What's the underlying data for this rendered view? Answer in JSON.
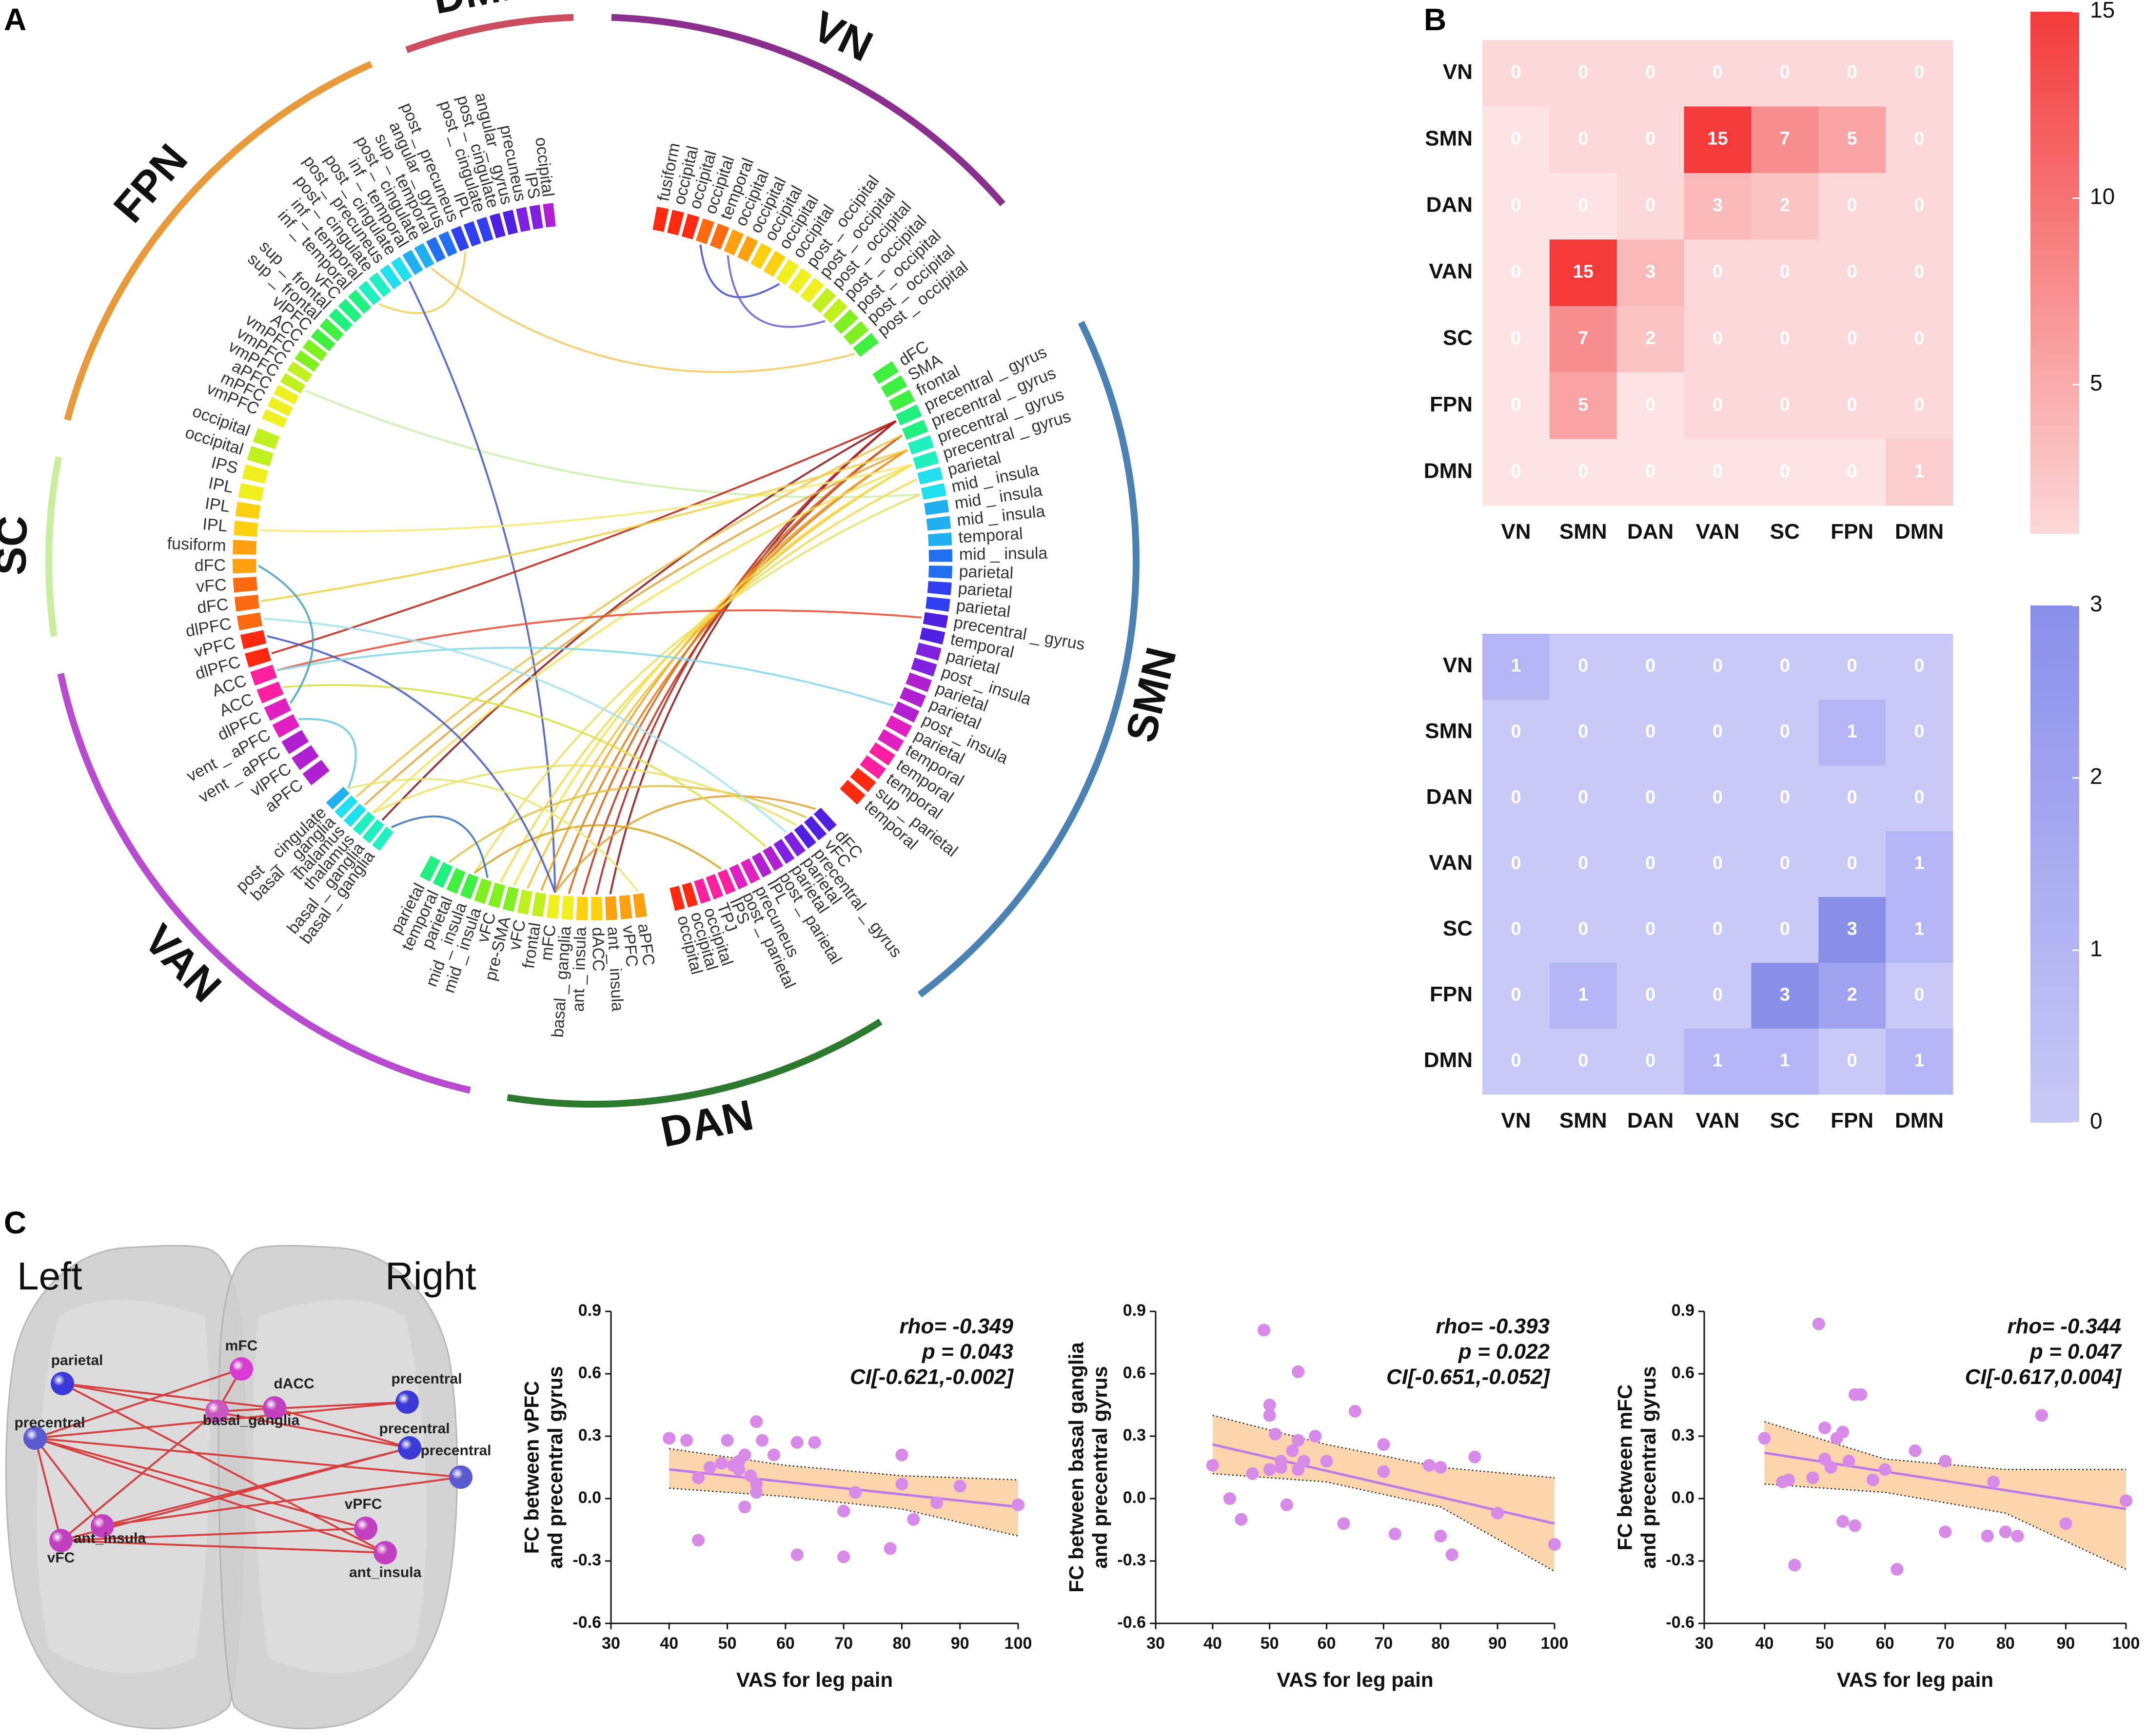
{
  "panels": {
    "a": "A",
    "b": "B",
    "c": "C"
  },
  "chord": {
    "networks": [
      {
        "name": "VN",
        "color": "#8b2f8f"
      },
      {
        "name": "SMN",
        "color": "#4a82b3"
      },
      {
        "name": "DAN",
        "color": "#2c7a2e"
      },
      {
        "name": "VAN",
        "color": "#b84ad0"
      },
      {
        "name": "SC",
        "color": "#c9ef9e"
      },
      {
        "name": "FPN",
        "color": "#e89a3a"
      },
      {
        "name": "DMN",
        "color": "#cc4d5e"
      }
    ],
    "groups": [
      {
        "network": "VN",
        "labels": [
          "fusiform",
          "occipital",
          "occipital",
          "occipital",
          "temporal",
          "occipital",
          "occipital",
          "occipital",
          "occipital",
          "occipital",
          "post _ occipital",
          "post _ occipital",
          "post _ occipital",
          "post _ occipital",
          "post _ occipital",
          "post _ occipital",
          "post _ occipital"
        ]
      },
      {
        "network": "SMN",
        "labels": [
          "dFC",
          "SMA",
          "frontal",
          "precentral _ gyrus",
          "precentral _ gyrus",
          "precentral _ gyrus",
          "precentral _ gyrus",
          "parietal",
          "mid _ insula",
          "mid _ insula",
          "mid _ insula",
          "temporal",
          "mid _ insula",
          "parietal",
          "parietal",
          "parietal",
          "precentral _ gyrus",
          "temporal",
          "parietal",
          "post _ insula",
          "parietal",
          "parietal",
          "post _ insula",
          "parietal",
          "temporal",
          "temporal",
          "temporal",
          "sup _ parietal",
          "temporal"
        ]
      },
      {
        "network": "DAN",
        "labels": [
          "dFC",
          "vFC",
          "precentral _ gyrus",
          "parietal",
          "parietal",
          "post _ parietal",
          "IPL",
          "precuneus",
          "post _ parietal",
          "IPS",
          "TPJ",
          "occipital",
          "occipital",
          "occipital"
        ]
      },
      {
        "network": "VAN",
        "labels": [
          "aPFC",
          "vPFC",
          "ant _ insula",
          "dACC",
          "ant _ insula",
          "basal _ ganglia",
          "mFC",
          "frontal",
          "vFC",
          "pre-SMA",
          "vFC",
          "mid _ insula",
          "mid _ insula",
          "parietal",
          "temporal",
          "parietal"
        ]
      },
      {
        "network": "SC",
        "labels": [
          "basal _ ganglia",
          "basal _ ganglia",
          "thalamus",
          "thalamus",
          "basal _ ganglia",
          "post _ cingulate"
        ]
      },
      {
        "network": "FPN",
        "labels": [
          "aPFC",
          "vlPFC",
          "vent _ aPFC",
          "vent _ aPFC",
          "dlPFC",
          "ACC",
          "ACC",
          "dlPFC",
          "vPFC",
          "dlPFC",
          "dFC",
          "vFC",
          "dFC",
          "fusiform",
          "IPL",
          "IPL",
          "IPL",
          "IPS",
          "occipital",
          "occipital"
        ]
      },
      {
        "network": "DMN",
        "labels": [
          "vmPFC",
          "mPFC",
          "aPFC",
          "vmPFC",
          "vmPFC",
          "vmPFC",
          "ACC",
          "vlPFC",
          "sup _ frontal",
          "sup _ frontal",
          "vFC",
          "inf _ temporal",
          "inf _ temporal",
          "post _ cingulate",
          "post _ precuneus",
          "post _ cingulate",
          "inf _ temporal",
          "post _ cingulate",
          "sup _ temporal",
          "angular _ gyrus",
          "post _ precuneus",
          "IPL",
          "post _ cingulate",
          "post _ cingulate",
          "angular _ gyrus",
          "precuneus",
          "IPS",
          "occipital"
        ]
      }
    ],
    "links": [
      {
        "from": [
          0,
          3
        ],
        "to": [
          0,
          9
        ],
        "color": "#3a4bc8"
      },
      {
        "from": [
          0,
          5
        ],
        "to": [
          0,
          13
        ],
        "color": "#6a5acd"
      },
      {
        "from": [
          6,
          12
        ],
        "to": [
          6,
          20
        ],
        "color": "#f0d050"
      },
      {
        "from": [
          6,
          17
        ],
        "to": [
          0,
          16
        ],
        "color": "#f4c85a"
      },
      {
        "from": [
          6,
          3
        ],
        "to": [
          1,
          8
        ],
        "color": "#c8f0a8"
      },
      {
        "from": [
          6,
          15
        ],
        "to": [
          3,
          6
        ],
        "color": "#3d57c2"
      },
      {
        "from": [
          1,
          3
        ],
        "to": [
          3,
          2
        ],
        "color": "#8b1010"
      },
      {
        "from": [
          1,
          3
        ],
        "to": [
          3,
          3
        ],
        "color": "#b02020"
      },
      {
        "from": [
          1,
          4
        ],
        "to": [
          3,
          4
        ],
        "color": "#c03010"
      },
      {
        "from": [
          1,
          4
        ],
        "to": [
          3,
          5
        ],
        "color": "#d86010"
      },
      {
        "from": [
          1,
          5
        ],
        "to": [
          3,
          6
        ],
        "color": "#e07a10"
      },
      {
        "from": [
          1,
          5
        ],
        "to": [
          3,
          7
        ],
        "color": "#f0a020"
      },
      {
        "from": [
          1,
          6
        ],
        "to": [
          3,
          8
        ],
        "color": "#f5c030"
      },
      {
        "from": [
          1,
          6
        ],
        "to": [
          3,
          9
        ],
        "color": "#f8e040"
      },
      {
        "from": [
          1,
          7
        ],
        "to": [
          3,
          10
        ],
        "color": "#f4d848"
      },
      {
        "from": [
          1,
          8
        ],
        "to": [
          3,
          12
        ],
        "color": "#e8e060"
      },
      {
        "from": [
          1,
          3
        ],
        "to": [
          4,
          1
        ],
        "color": "#8b1010"
      },
      {
        "from": [
          1,
          5
        ],
        "to": [
          4,
          3
        ],
        "color": "#e8a030"
      },
      {
        "from": [
          1,
          4
        ],
        "to": [
          4,
          4
        ],
        "color": "#f0c040"
      },
      {
        "from": [
          1,
          6
        ],
        "to": [
          4,
          2
        ],
        "color": "#f8e050"
      },
      {
        "from": [
          1,
          3
        ],
        "to": [
          5,
          7
        ],
        "color": "#c02010"
      },
      {
        "from": [
          1,
          5
        ],
        "to": [
          5,
          10
        ],
        "color": "#f0d040"
      },
      {
        "from": [
          1,
          6
        ],
        "to": [
          5,
          14
        ],
        "color": "#f8e870"
      },
      {
        "from": [
          1,
          16
        ],
        "to": [
          5,
          6
        ],
        "color": "#e84a30"
      },
      {
        "from": [
          2,
          0
        ],
        "to": [
          3,
          6
        ],
        "color": "#e0a030"
      },
      {
        "from": [
          2,
          1
        ],
        "to": [
          3,
          14
        ],
        "color": "#e0c040"
      },
      {
        "from": [
          2,
          5
        ],
        "to": [
          5,
          5
        ],
        "color": "#d8e040"
      },
      {
        "from": [
          2,
          9
        ],
        "to": [
          3,
          12
        ],
        "color": "#d8a020"
      },
      {
        "from": [
          2,
          2
        ],
        "to": [
          4,
          2
        ],
        "color": "#f0e060"
      },
      {
        "from": [
          5,
          3
        ],
        "to": [
          4,
          5
        ],
        "color": "#60c8e0"
      },
      {
        "from": [
          5,
          8
        ],
        "to": [
          3,
          6
        ],
        "color": "#3d57c2"
      },
      {
        "from": [
          5,
          6
        ],
        "to": [
          1,
          22
        ],
        "color": "#80d8e8"
      },
      {
        "from": [
          5,
          9
        ],
        "to": [
          2,
          3
        ],
        "color": "#a0e0f0"
      },
      {
        "from": [
          4,
          0
        ],
        "to": [
          3,
          11
        ],
        "color": "#3070c0"
      },
      {
        "from": [
          5,
          4
        ],
        "to": [
          5,
          12
        ],
        "color": "#40a0c0"
      },
      {
        "from": [
          3,
          0
        ],
        "to": [
          4,
          5
        ],
        "color": "#e8e870"
      }
    ]
  },
  "heatmap_top": {
    "rows": [
      "VN",
      "SMN",
      "DAN",
      "VAN",
      "SC",
      "FPN",
      "DMN"
    ],
    "cols": [
      "VN",
      "SMN",
      "DAN",
      "VAN",
      "SC",
      "FPN",
      "DMN"
    ],
    "values": [
      [
        0,
        0,
        0,
        0,
        0,
        0,
        0
      ],
      [
        0,
        0,
        0,
        15,
        7,
        5,
        0
      ],
      [
        0,
        0,
        0,
        3,
        2,
        0,
        0
      ],
      [
        0,
        15,
        3,
        0,
        0,
        0,
        0
      ],
      [
        0,
        7,
        2,
        0,
        0,
        0,
        0
      ],
      [
        0,
        5,
        0,
        0,
        0,
        0,
        0
      ],
      [
        0,
        0,
        0,
        0,
        0,
        0,
        1
      ]
    ],
    "masked": [
      [
        0,
        0,
        0,
        0,
        0,
        0,
        0
      ],
      [
        1,
        0,
        0,
        0,
        0,
        0,
        0
      ],
      [
        1,
        1,
        0,
        0,
        0,
        0,
        0
      ],
      [
        1,
        0,
        0,
        0,
        0,
        0,
        0
      ],
      [
        1,
        0,
        0,
        0,
        0,
        0,
        0
      ],
      [
        1,
        0,
        1,
        0,
        0,
        0,
        0
      ],
      [
        1,
        1,
        1,
        1,
        1,
        1,
        0
      ]
    ],
    "colorbar_ticks": [
      "15",
      "10",
      "5"
    ],
    "cmap": {
      "low": "#fcd8d8",
      "high": "#f33b3b",
      "mask": "#fde4e4"
    }
  },
  "heatmap_bottom": {
    "rows": [
      "VN",
      "SMN",
      "DAN",
      "VAN",
      "SC",
      "FPN",
      "DMN"
    ],
    "cols": [
      "VN",
      "SMN",
      "DAN",
      "VAN",
      "SC",
      "FPN",
      "DMN"
    ],
    "values": [
      [
        1,
        0,
        0,
        0,
        0,
        0,
        0
      ],
      [
        0,
        0,
        0,
        0,
        0,
        1,
        0
      ],
      [
        0,
        0,
        0,
        0,
        0,
        0,
        0
      ],
      [
        0,
        0,
        0,
        0,
        0,
        0,
        1
      ],
      [
        0,
        0,
        0,
        0,
        0,
        3,
        1
      ],
      [
        0,
        1,
        0,
        0,
        3,
        2,
        0
      ],
      [
        0,
        0,
        0,
        1,
        1,
        0,
        1
      ]
    ],
    "colorbar_ticks": [
      "3",
      "2",
      "1",
      "0"
    ],
    "cmap": {
      "low": "#c8c9f6",
      "high": "#8a8fea"
    }
  },
  "brain": {
    "left_label": "Left",
    "right_label": "Right",
    "nodes": [
      {
        "label": "mFC",
        "color": "#d63ad0"
      },
      {
        "label": "dACC",
        "color": "#c040c0"
      },
      {
        "label": "basal_ganglia",
        "color": "#c858c0"
      },
      {
        "label": "parietal",
        "color": "#3a3ad8"
      },
      {
        "label": "precentral",
        "color": "#5a5ad0"
      },
      {
        "label": "ant_insula",
        "color": "#c040c0"
      },
      {
        "label": "vFC",
        "color": "#c040c0"
      },
      {
        "label": "precentral",
        "color": "#3a3ad8"
      },
      {
        "label": "precentral",
        "color": "#3a3ad8"
      },
      {
        "label": "precentral",
        "color": "#5a5ad0"
      },
      {
        "label": "vPFC",
        "color": "#c040c0"
      },
      {
        "label": "ant_insula",
        "color": "#c040c0"
      }
    ],
    "edges": [
      [
        3,
        8
      ],
      [
        3,
        11
      ],
      [
        4,
        7
      ],
      [
        4,
        9
      ],
      [
        4,
        10
      ],
      [
        4,
        0
      ],
      [
        4,
        11
      ],
      [
        5,
        9
      ],
      [
        5,
        8
      ],
      [
        6,
        10
      ],
      [
        6,
        8
      ],
      [
        6,
        2
      ],
      [
        2,
        7
      ],
      [
        2,
        0
      ],
      [
        1,
        8
      ],
      [
        3,
        1
      ],
      [
        4,
        5
      ],
      [
        6,
        11
      ],
      [
        4,
        6
      ]
    ]
  },
  "chart_data": [
    {
      "type": "scatter",
      "title": "",
      "xlabel": "VAS for leg pain",
      "ylabel": [
        "FC between vPFC",
        "and precentral gyrus"
      ],
      "xlim": [
        30,
        100
      ],
      "ylim": [
        -0.6,
        0.9
      ],
      "xticks": [
        30,
        40,
        50,
        60,
        70,
        80,
        90,
        100
      ],
      "yticks": [
        -0.6,
        -0.3,
        0.0,
        0.3,
        0.6,
        0.9
      ],
      "stats": [
        "rho= -0.349",
        "p  =  0.043",
        "CI[-0.621,-0.002]"
      ],
      "point_color": "#d88ae8",
      "x": [
        40,
        43,
        45,
        45,
        47,
        49,
        50,
        51,
        52,
        52,
        53,
        53,
        54,
        55,
        55,
        55,
        56,
        58,
        62,
        62,
        65,
        70,
        70,
        72,
        78,
        80,
        80,
        82,
        86,
        90,
        100
      ],
      "y": [
        0.29,
        0.28,
        0.1,
        -0.2,
        0.15,
        0.17,
        0.28,
        0.16,
        0.18,
        0.14,
        0.21,
        -0.04,
        0.11,
        0.37,
        0.07,
        0.03,
        0.28,
        0.21,
        -0.27,
        0.27,
        0.27,
        -0.28,
        -0.06,
        0.03,
        -0.24,
        0.21,
        0.07,
        -0.1,
        -0.02,
        0.06,
        -0.03
      ],
      "fit": {
        "x": [
          40,
          100
        ],
        "y": [
          0.14,
          -0.04
        ]
      },
      "ci_band": {
        "x": [
          40,
          60,
          80,
          100
        ],
        "lower": [
          0.05,
          0.01,
          -0.05,
          -0.18
        ],
        "upper": [
          0.24,
          0.16,
          0.11,
          0.09
        ]
      }
    },
    {
      "type": "scatter",
      "title": "",
      "xlabel": "VAS for leg pain",
      "ylabel": [
        "FC between basal ganglia",
        "and precentral gyrus"
      ],
      "xlim": [
        30,
        100
      ],
      "ylim": [
        -0.6,
        0.9
      ],
      "xticks": [
        30,
        40,
        50,
        60,
        70,
        80,
        90,
        100
      ],
      "yticks": [
        -0.6,
        -0.3,
        0.0,
        0.3,
        0.6,
        0.9
      ],
      "stats": [
        "rho= -0.393",
        "p  =  0.022",
        "CI[-0.651,-0.052]"
      ],
      "point_color": "#d88ae8",
      "x": [
        40,
        43,
        45,
        47,
        49,
        50,
        50,
        50,
        51,
        52,
        52,
        53,
        54,
        55,
        55,
        55,
        56,
        58,
        60,
        63,
        65,
        70,
        70,
        72,
        78,
        80,
        80,
        82,
        86,
        90,
        100
      ],
      "y": [
        0.16,
        0.0,
        -0.1,
        0.12,
        0.81,
        0.45,
        0.4,
        0.14,
        0.31,
        0.18,
        0.15,
        -0.03,
        0.23,
        0.61,
        0.14,
        0.28,
        0.18,
        0.3,
        0.18,
        -0.12,
        0.42,
        0.26,
        0.13,
        -0.17,
        0.16,
        -0.18,
        0.15,
        -0.27,
        0.2,
        -0.07,
        -0.22
      ],
      "fit": {
        "x": [
          40,
          100
        ],
        "y": [
          0.26,
          -0.12
        ]
      },
      "ci_band": {
        "x": [
          40,
          60,
          80,
          100
        ],
        "lower": [
          0.12,
          0.08,
          -0.04,
          -0.35
        ],
        "upper": [
          0.4,
          0.26,
          0.15,
          0.1
        ]
      }
    },
    {
      "type": "scatter",
      "title": "",
      "xlabel": "VAS for leg pain",
      "ylabel": [
        "FC between mFC",
        "and precentral gyrus"
      ],
      "xlim": [
        30,
        100
      ],
      "ylim": [
        -0.6,
        0.9
      ],
      "xticks": [
        30,
        40,
        50,
        60,
        70,
        80,
        90,
        100
      ],
      "yticks": [
        -0.6,
        -0.3,
        0.0,
        0.3,
        0.6,
        0.9
      ],
      "stats": [
        "rho= -0.344",
        "p  =  0.047",
        "CI[-0.617,0.004]"
      ],
      "point_color": "#d88ae8",
      "x": [
        40,
        43,
        44,
        45,
        48,
        49,
        50,
        50,
        51,
        52,
        53,
        53,
        54,
        55,
        55,
        56,
        58,
        60,
        62,
        65,
        70,
        70,
        77,
        78,
        80,
        82,
        86,
        90,
        100
      ],
      "y": [
        0.29,
        0.08,
        0.09,
        -0.32,
        0.1,
        0.84,
        0.34,
        0.19,
        0.15,
        0.29,
        0.32,
        -0.11,
        0.18,
        0.5,
        -0.13,
        0.5,
        0.09,
        0.14,
        -0.34,
        0.23,
        0.18,
        -0.16,
        -0.18,
        0.08,
        -0.16,
        -0.18,
        0.4,
        -0.12,
        -0.01
      ],
      "fit": {
        "x": [
          40,
          100
        ],
        "y": [
          0.22,
          -0.05
        ]
      },
      "ci_band": {
        "x": [
          40,
          60,
          80,
          100
        ],
        "lower": [
          0.07,
          0.03,
          -0.07,
          -0.34
        ],
        "upper": [
          0.37,
          0.19,
          0.14,
          0.14
        ]
      }
    }
  ]
}
